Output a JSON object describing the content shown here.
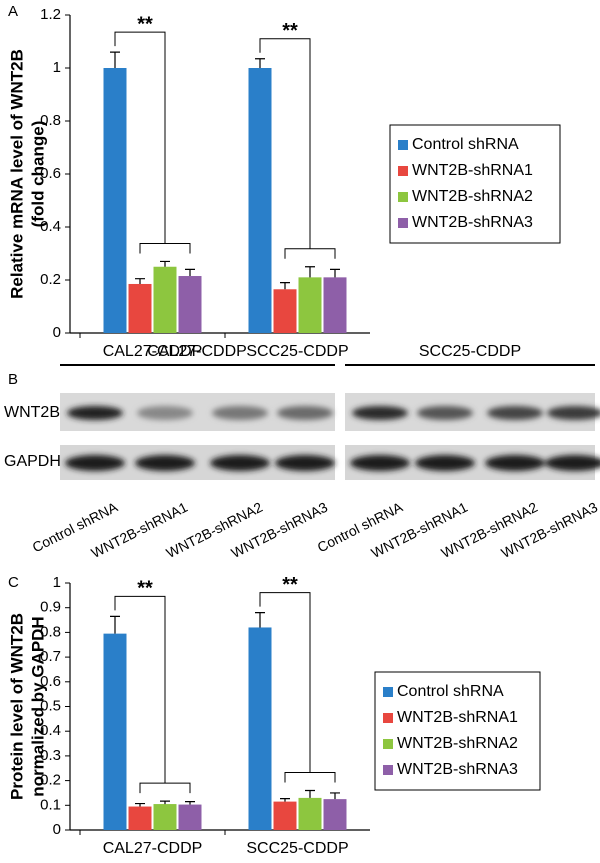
{
  "chart_data": [
    {
      "type": "bar",
      "panel": "A",
      "ylabel": [
        "Relative mRNA level of WNT2B",
        "(fold change)"
      ],
      "categories": [
        "CAL27-CDDP",
        "SCC25-CDDP"
      ],
      "series": [
        {
          "name": "Control shRNA",
          "color": "#2a7fc9",
          "values": [
            1,
            1
          ],
          "errors": [
            0.06,
            0.035
          ]
        },
        {
          "name": "WNT2B-shRNA1",
          "color": "#e8473f",
          "values": [
            0.185,
            0.165
          ],
          "errors": [
            0.02,
            0.025
          ]
        },
        {
          "name": "WNT2B-shRNA2",
          "color": "#8dc63f",
          "values": [
            0.25,
            0.21
          ],
          "errors": [
            0.02,
            0.04
          ]
        },
        {
          "name": "WNT2B-shRNA3",
          "color": "#8e5fa8",
          "values": [
            0.215,
            0.21
          ],
          "errors": [
            0.025,
            0.03
          ]
        }
      ],
      "ylim": [
        0,
        1.2
      ],
      "yticks": [
        0,
        0.2,
        0.4,
        0.6,
        0.8,
        1,
        1.2
      ],
      "annotations": [
        "**",
        "**"
      ],
      "legend": "right"
    },
    {
      "type": "bar",
      "panel": "C",
      "ylabel": [
        "Protein level of WNT2B",
        "normalized by GAPDH"
      ],
      "categories": [
        "CAL27-CDDP",
        "SCC25-CDDP"
      ],
      "series": [
        {
          "name": "Control shRNA",
          "color": "#2a7fc9",
          "values": [
            0.795,
            0.82
          ],
          "errors": [
            0.07,
            0.06
          ]
        },
        {
          "name": "WNT2B-shRNA1",
          "color": "#e8473f",
          "values": [
            0.095,
            0.115
          ],
          "errors": [
            0.012,
            0.012
          ]
        },
        {
          "name": "WNT2B-shRNA2",
          "color": "#8dc63f",
          "values": [
            0.105,
            0.13
          ],
          "errors": [
            0.012,
            0.03
          ]
        },
        {
          "name": "WNT2B-shRNA3",
          "color": "#8e5fa8",
          "values": [
            0.103,
            0.125
          ],
          "errors": [
            0.012,
            0.025
          ]
        }
      ],
      "ylim": [
        0,
        1
      ],
      "yticks": [
        0,
        0.1,
        0.2,
        0.3,
        0.4,
        0.5,
        0.6,
        0.7,
        0.8,
        0.9,
        1
      ],
      "annotations": [
        "**",
        "**"
      ],
      "legend": "right"
    }
  ],
  "blot": {
    "panel": "B",
    "groups": [
      "CAL27-CDDP",
      "SCC25-CDDP"
    ],
    "rows": [
      "WNT2B",
      "GAPDH"
    ],
    "lanes": [
      "Control shRNA",
      "WNT2B-shRNA1",
      "WNT2B-shRNA2",
      "WNT2B-shRNA3",
      "Control shRNA",
      "WNT2B-shRNA1",
      "WNT2B-shRNA2",
      "WNT2B-shRNA3"
    ]
  }
}
